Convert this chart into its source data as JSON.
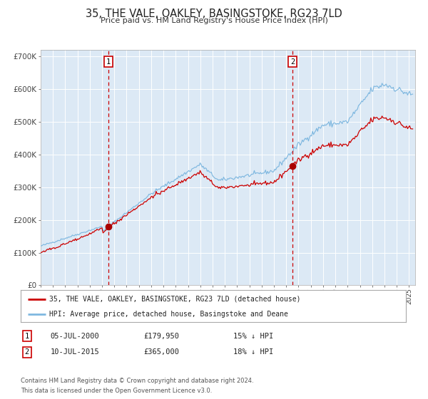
{
  "title": "35, THE VALE, OAKLEY, BASINGSTOKE, RG23 7LD",
  "subtitle": "Price paid vs. HM Land Registry's House Price Index (HPI)",
  "title_fontsize": 10.5,
  "subtitle_fontsize": 8,
  "bg_color": "#ffffff",
  "plot_bg_color": "#dce9f5",
  "grid_color": "#ffffff",
  "hpi_color": "#7fb8e0",
  "price_color": "#cc0000",
  "marker_color": "#aa0000",
  "vline_color": "#cc0000",
  "sale1_year": 2000.52,
  "sale1_price": 179950,
  "sale1_label": "05-JUL-2000",
  "sale1_note": "15% ↓ HPI",
  "sale2_year": 2015.52,
  "sale2_price": 365000,
  "sale2_label": "10-JUL-2015",
  "sale2_note": "18% ↓ HPI",
  "xmin": 1995.0,
  "xmax": 2025.5,
  "ymin": 0,
  "ymax": 720000,
  "yticks": [
    0,
    100000,
    200000,
    300000,
    400000,
    500000,
    600000,
    700000
  ],
  "ytick_labels": [
    "£0",
    "£100K",
    "£200K",
    "£300K",
    "£400K",
    "£500K",
    "£600K",
    "£700K"
  ],
  "legend_property_label": "35, THE VALE, OAKLEY, BASINGSTOKE, RG23 7LD (detached house)",
  "legend_hpi_label": "HPI: Average price, detached house, Basingstoke and Deane",
  "footer1": "Contains HM Land Registry data © Crown copyright and database right 2024.",
  "footer2": "This data is licensed under the Open Government Licence v3.0."
}
